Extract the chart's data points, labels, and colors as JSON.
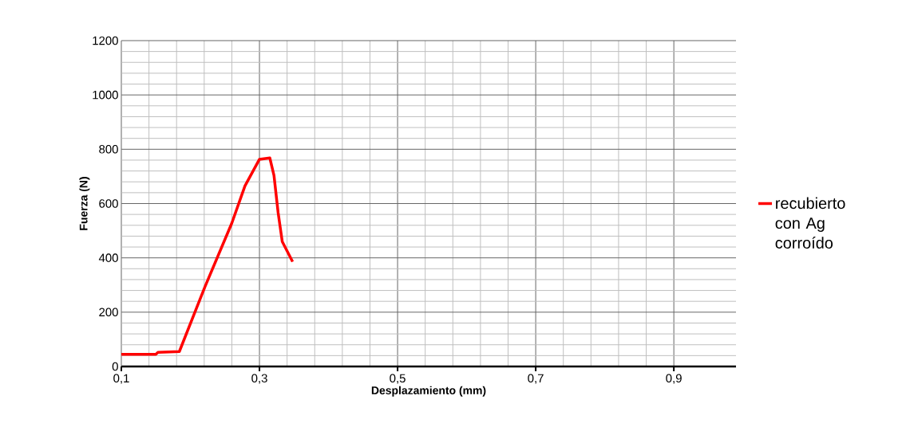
{
  "chart_data": {
    "type": "line",
    "xlabel": "Desplazamiento  (mm)",
    "ylabel": "Fuerza (N)",
    "xlim": [
      0.1,
      0.99
    ],
    "ylim": [
      0,
      1200
    ],
    "xticks": [
      {
        "value": 0.1,
        "label": "0,1"
      },
      {
        "value": 0.3,
        "label": "0,3"
      },
      {
        "value": 0.5,
        "label": "0,5"
      },
      {
        "value": 0.7,
        "label": "0,7"
      },
      {
        "value": 0.9,
        "label": "0,9"
      }
    ],
    "yticks": [
      0,
      200,
      400,
      600,
      800,
      1000,
      1200
    ],
    "grid": true,
    "legend": "right",
    "marker": "none",
    "line_style": "solid",
    "series": [
      {
        "name": "recubierto con Ag corroído",
        "color": "#ff0000",
        "x": [
          0.1,
          0.15,
          0.153,
          0.184,
          0.221,
          0.26,
          0.279,
          0.3,
          0.315,
          0.321,
          0.327,
          0.333,
          0.348
        ],
        "values": [
          45,
          45,
          52,
          55,
          293,
          528,
          665,
          763,
          768,
          704,
          567,
          460,
          386
        ]
      }
    ]
  }
}
